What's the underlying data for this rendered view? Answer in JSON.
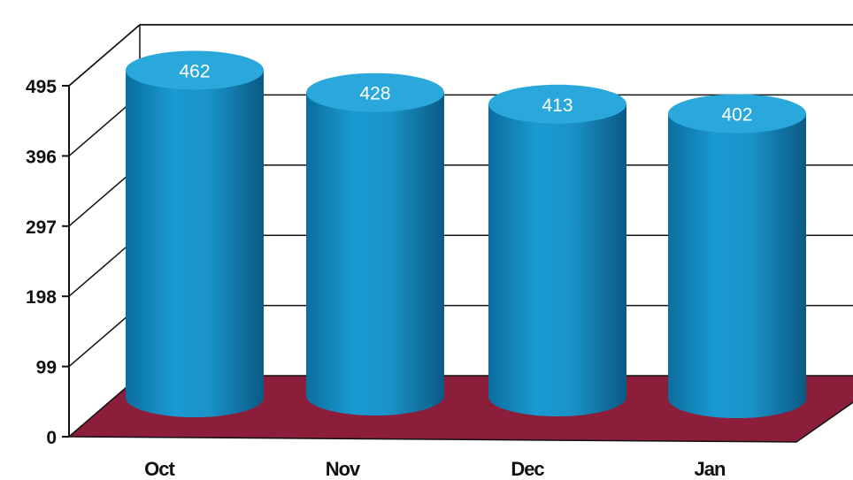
{
  "chart_data": {
    "type": "bar",
    "bar_shape": "3d-cylinder",
    "categories": [
      "Oct",
      "Nov",
      "Dec",
      "Jan"
    ],
    "values": [
      462,
      428,
      413,
      402
    ],
    "data_labels": [
      "462",
      "428",
      "413",
      "402"
    ],
    "yticks": [
      0,
      99,
      198,
      297,
      396,
      495
    ],
    "ytick_labels": [
      "0",
      "99",
      "198",
      "297",
      "396",
      "495"
    ],
    "ylim": [
      0,
      495
    ],
    "grid": true,
    "legend": "none",
    "colors": {
      "bar": "#1a93c8",
      "bar_dark": "#0a5f8a",
      "bar_top": "#2aa8dc",
      "floor": "#8c1d3b",
      "frame": "#111111"
    }
  }
}
